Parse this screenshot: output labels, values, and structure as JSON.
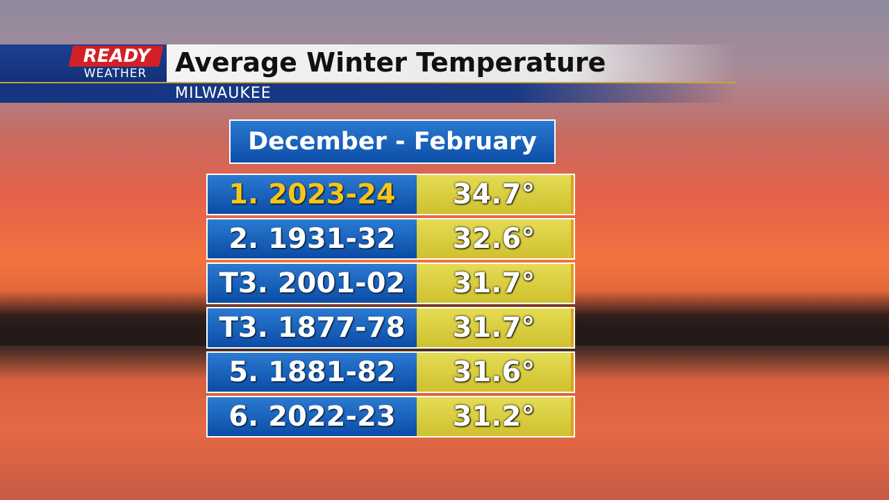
{
  "header": {
    "logo_top": "READY",
    "logo_bottom": "WEATHER",
    "title": "Average Winter Temperature",
    "subtitle": "MILWAUKEE"
  },
  "table": {
    "title": "December - February",
    "rows": [
      [
        "1. 2023-24",
        "34.7°"
      ],
      [
        "2. 1931-32",
        "32.6°"
      ],
      [
        "T3. 2001-02",
        "31.7°"
      ],
      [
        "T3. 1877-78",
        "31.7°"
      ],
      [
        "5. 1881-82",
        "31.6°"
      ],
      [
        "6. 2022-23",
        "31.2°"
      ]
    ]
  }
}
